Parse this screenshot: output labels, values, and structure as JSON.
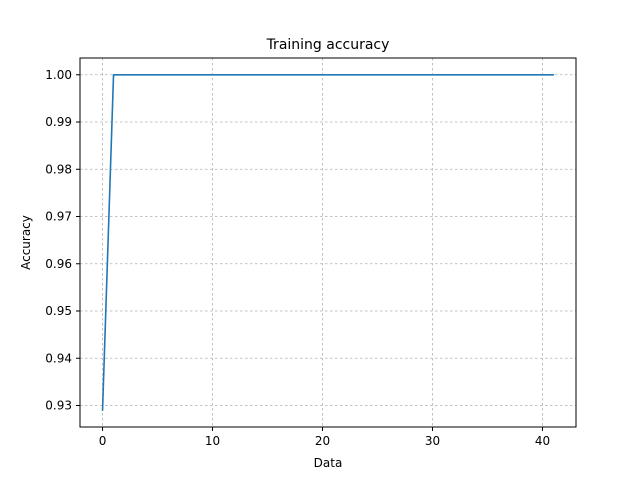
{
  "chart_data": {
    "type": "line",
    "title": "Training accuracy",
    "xlabel": "Data",
    "ylabel": "Accuracy",
    "xlim": [
      -2.05,
      43.05
    ],
    "ylim": [
      0.92545,
      1.00355
    ],
    "xticks": [
      0,
      10,
      20,
      30,
      40
    ],
    "yticks": [
      0.93,
      0.94,
      0.95,
      0.96,
      0.97,
      0.98,
      0.99,
      1.0
    ],
    "ytick_labels": [
      "0.93",
      "0.94",
      "0.95",
      "0.96",
      "0.97",
      "0.98",
      "0.99",
      "1.00"
    ],
    "grid": true,
    "series": [
      {
        "color": "#1f77b4",
        "x": [
          0,
          1,
          41
        ],
        "y": [
          0.929,
          1.0,
          1.0
        ]
      }
    ]
  },
  "colors": {
    "line": "#1f77b4",
    "grid": "#b0b0b0",
    "axes": "#000000",
    "background": "#ffffff"
  }
}
